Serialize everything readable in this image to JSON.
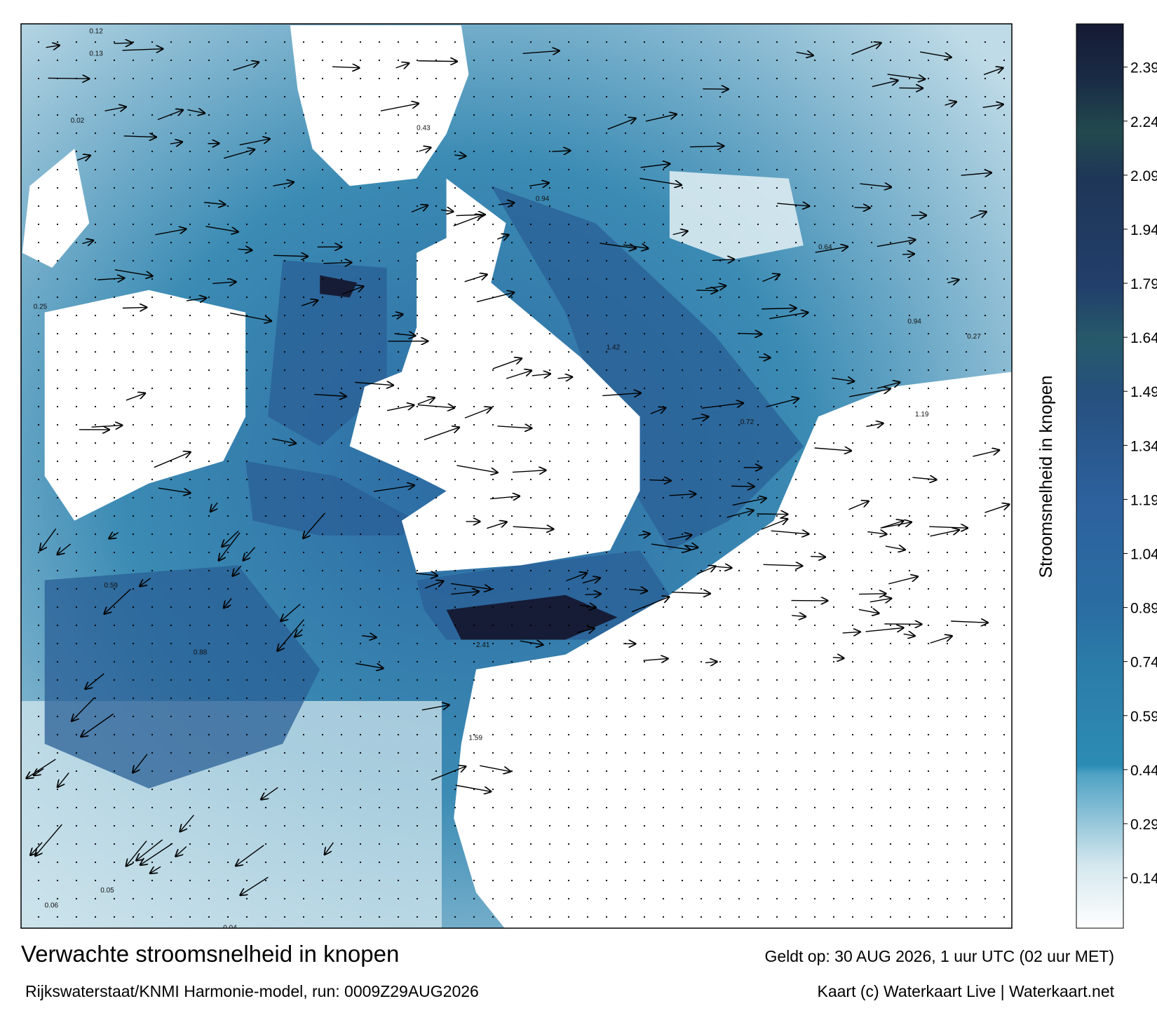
{
  "map": {
    "title": "Verwachte stroomsnelheid in knopen",
    "subtitle": "Rijkswaterstaat/KNMI Harmonie-model, run: 0009Z29AUG2026",
    "valid_time": "Geldt op: 30 AUG 2026, 1 uur UTC (02 uur MET)",
    "credit": "Kaart (c) Waterkaart Live | Waterkaart.net",
    "colorbar": {
      "label": "Stroomsnelheid in knopen",
      "range": [
        0,
        2.51
      ],
      "ticks": [
        0.14,
        0.29,
        0.44,
        0.59,
        0.74,
        0.89,
        1.04,
        1.19,
        1.34,
        1.49,
        1.64,
        1.79,
        1.94,
        2.09,
        2.24,
        2.39
      ]
    },
    "point_labels": [
      "0.12",
      "0.13",
      "0.02",
      "0.25",
      "0.43",
      "0.94",
      "1.42",
      "0.72",
      "1.19",
      "0.27",
      "0.64",
      "0.94",
      "2.41",
      "1.59",
      "0.06",
      "0.05",
      "0.04",
      "0.05",
      "0.59",
      "0.88"
    ]
  }
}
